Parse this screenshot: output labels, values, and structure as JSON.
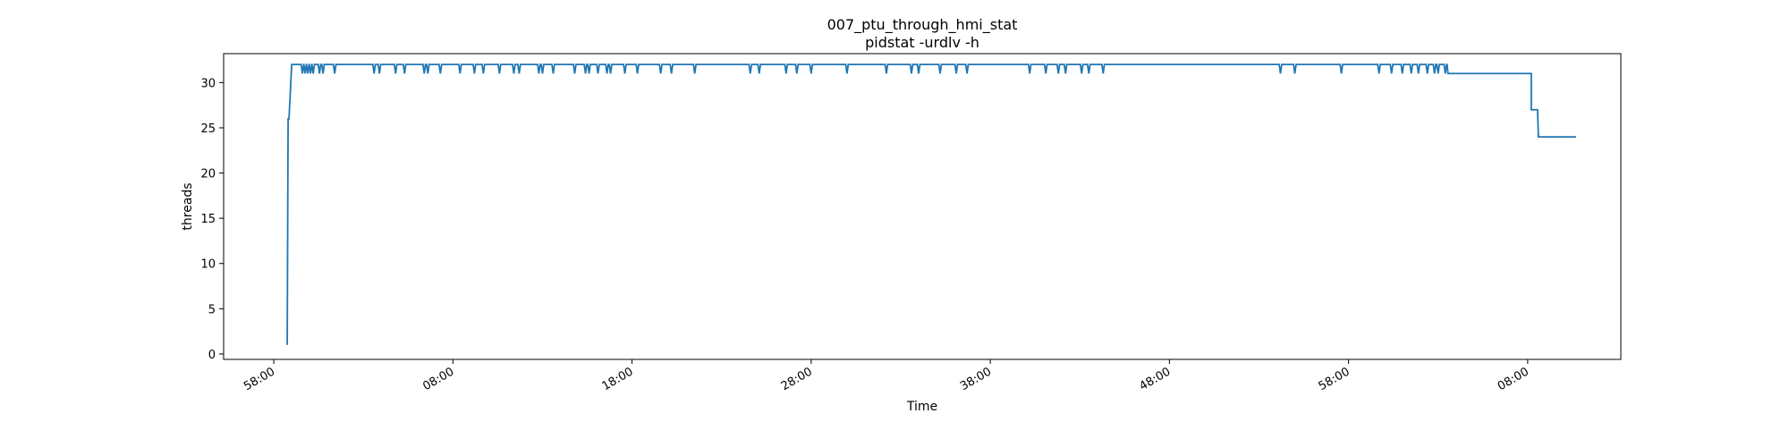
{
  "chart_data": {
    "type": "line",
    "title": "007_ptu_through_hmi_stat",
    "subtitle": "pidstat -urdlv -h",
    "xlabel": "Time",
    "ylabel": "threads",
    "grid": false,
    "legend": "none",
    "x_unit": "minutes",
    "xlim": [
      -4.8,
      73.2
    ],
    "ylim": [
      -0.6,
      33.2
    ],
    "xticks": [
      {
        "value": -2,
        "label": "58:00"
      },
      {
        "value": 8,
        "label": "08:00"
      },
      {
        "value": 18,
        "label": "18:00"
      },
      {
        "value": 28,
        "label": "28:00"
      },
      {
        "value": 38,
        "label": "38:00"
      },
      {
        "value": 48,
        "label": "48:00"
      },
      {
        "value": 58,
        "label": "58:00"
      },
      {
        "value": 68,
        "label": "08:00"
      }
    ],
    "yticks": [
      0,
      5,
      10,
      15,
      20,
      25,
      30
    ],
    "color": "#1f77b4",
    "series": [
      {
        "name": "",
        "points": [
          [
            -1.25,
            1
          ],
          [
            -1.2,
            26
          ],
          [
            -1.15,
            26
          ],
          [
            -1.0,
            32
          ],
          [
            68.2,
            32
          ],
          [
            68.2,
            27
          ],
          [
            68.55,
            27
          ],
          [
            68.6,
            24
          ],
          [
            70.7,
            24
          ]
        ],
        "base_value": 32,
        "dips": [
          {
            "x": -0.4,
            "y": 31
          },
          {
            "x": -0.25,
            "y": 31
          },
          {
            "x": -0.1,
            "y": 31
          },
          {
            "x": 0.05,
            "y": 31
          },
          {
            "x": 0.2,
            "y": 31
          },
          {
            "x": 0.55,
            "y": 31
          },
          {
            "x": 0.75,
            "y": 31
          },
          {
            "x": 1.4,
            "y": 31
          },
          {
            "x": 3.6,
            "y": 31
          },
          {
            "x": 3.9,
            "y": 31
          },
          {
            "x": 4.8,
            "y": 31
          },
          {
            "x": 5.3,
            "y": 31
          },
          {
            "x": 6.4,
            "y": 31
          },
          {
            "x": 6.6,
            "y": 31
          },
          {
            "x": 7.3,
            "y": 31
          },
          {
            "x": 8.4,
            "y": 31
          },
          {
            "x": 9.2,
            "y": 31
          },
          {
            "x": 9.7,
            "y": 31
          },
          {
            "x": 10.6,
            "y": 31
          },
          {
            "x": 11.4,
            "y": 31
          },
          {
            "x": 11.7,
            "y": 31
          },
          {
            "x": 12.8,
            "y": 31
          },
          {
            "x": 13.0,
            "y": 31
          },
          {
            "x": 13.6,
            "y": 31
          },
          {
            "x": 14.8,
            "y": 31
          },
          {
            "x": 15.4,
            "y": 31
          },
          {
            "x": 15.6,
            "y": 31
          },
          {
            "x": 16.1,
            "y": 31
          },
          {
            "x": 16.6,
            "y": 31
          },
          {
            "x": 16.8,
            "y": 31
          },
          {
            "x": 17.6,
            "y": 31
          },
          {
            "x": 18.3,
            "y": 31
          },
          {
            "x": 19.6,
            "y": 31
          },
          {
            "x": 20.2,
            "y": 31
          },
          {
            "x": 21.5,
            "y": 31
          },
          {
            "x": 24.6,
            "y": 31
          },
          {
            "x": 25.1,
            "y": 31
          },
          {
            "x": 26.6,
            "y": 31
          },
          {
            "x": 27.2,
            "y": 31
          },
          {
            "x": 28.0,
            "y": 31
          },
          {
            "x": 30.0,
            "y": 31
          },
          {
            "x": 32.2,
            "y": 31
          },
          {
            "x": 33.6,
            "y": 31
          },
          {
            "x": 34.0,
            "y": 31
          },
          {
            "x": 35.2,
            "y": 31
          },
          {
            "x": 36.1,
            "y": 31
          },
          {
            "x": 36.7,
            "y": 31
          },
          {
            "x": 40.2,
            "y": 31
          },
          {
            "x": 41.1,
            "y": 31
          },
          {
            "x": 41.8,
            "y": 31
          },
          {
            "x": 42.2,
            "y": 31
          },
          {
            "x": 43.1,
            "y": 31
          },
          {
            "x": 43.5,
            "y": 31
          },
          {
            "x": 44.3,
            "y": 31
          },
          {
            "x": 54.2,
            "y": 31
          },
          {
            "x": 55.0,
            "y": 31
          },
          {
            "x": 57.6,
            "y": 31
          },
          {
            "x": 59.7,
            "y": 31
          },
          {
            "x": 60.4,
            "y": 31
          },
          {
            "x": 61.0,
            "y": 31
          },
          {
            "x": 61.5,
            "y": 31
          },
          {
            "x": 61.9,
            "y": 31
          },
          {
            "x": 62.4,
            "y": 31
          },
          {
            "x": 62.8,
            "y": 31
          },
          {
            "x": 63.0,
            "y": 31
          },
          {
            "x": 63.4,
            "y": 31
          }
        ],
        "plateau": {
          "start": 63.5,
          "end": 68.2,
          "value": 31
        }
      }
    ]
  }
}
